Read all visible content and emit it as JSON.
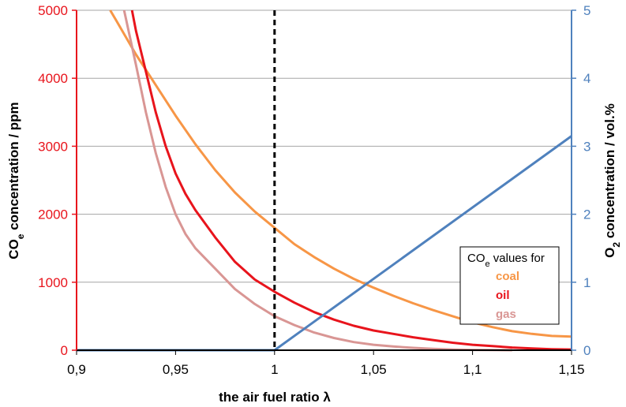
{
  "chart_data": {
    "type": "line",
    "xlabel": "the air fuel ratio λ",
    "ylabel_left": {
      "main": "CO",
      "sub": "e",
      "rest": " concentration / ppm"
    },
    "ylabel_right": {
      "main": "O",
      "sub": "2",
      "rest": " concentration / vol.%"
    },
    "xlim": [
      0.9,
      1.15
    ],
    "ylim_left": [
      0,
      5000
    ],
    "ylim_right": [
      0,
      5
    ],
    "x_ticks": [
      {
        "value": 0.9,
        "label": "0,9"
      },
      {
        "value": 0.95,
        "label": "0,95"
      },
      {
        "value": 1.0,
        "label": "1"
      },
      {
        "value": 1.05,
        "label": "1,05"
      },
      {
        "value": 1.1,
        "label": "1,1"
      },
      {
        "value": 1.15,
        "label": "1,15"
      }
    ],
    "y_left_ticks": [
      {
        "value": 0,
        "label": "0"
      },
      {
        "value": 1000,
        "label": "1000"
      },
      {
        "value": 2000,
        "label": "2000"
      },
      {
        "value": 3000,
        "label": "3000"
      },
      {
        "value": 4000,
        "label": "4000"
      },
      {
        "value": 5000,
        "label": "5000"
      }
    ],
    "y_right_ticks": [
      {
        "value": 0,
        "label": "0"
      },
      {
        "value": 1,
        "label": "1"
      },
      {
        "value": 2,
        "label": "2"
      },
      {
        "value": 3,
        "label": "3"
      },
      {
        "value": 4,
        "label": "4"
      },
      {
        "value": 5,
        "label": "5"
      }
    ],
    "grid": "horizontal",
    "reference_line": {
      "x": 1.0,
      "style": "dashed"
    },
    "legend": {
      "title_main": "CO",
      "title_sub": "e",
      "title_rest": " values for",
      "placement": "bottom-right"
    },
    "series": [
      {
        "name": "coal",
        "axis": "left",
        "color": "#f79646",
        "x": [
          0.917,
          0.92,
          0.93,
          0.94,
          0.95,
          0.96,
          0.97,
          0.98,
          0.99,
          1.0,
          1.01,
          1.02,
          1.03,
          1.04,
          1.05,
          1.06,
          1.07,
          1.08,
          1.09,
          1.1,
          1.11,
          1.12,
          1.13,
          1.14,
          1.15
        ],
        "values": [
          5000,
          4850,
          4350,
          3900,
          3450,
          3030,
          2650,
          2320,
          2040,
          1800,
          1560,
          1370,
          1200,
          1050,
          920,
          800,
          690,
          590,
          500,
          410,
          340,
          280,
          240,
          210,
          200
        ]
      },
      {
        "name": "oil",
        "axis": "left",
        "color": "#e8141c",
        "x": [
          0.928,
          0.93,
          0.935,
          0.94,
          0.945,
          0.95,
          0.955,
          0.96,
          0.97,
          0.98,
          0.99,
          1.0,
          1.01,
          1.02,
          1.03,
          1.04,
          1.05,
          1.06,
          1.07,
          1.08,
          1.09,
          1.1,
          1.11,
          1.12,
          1.13,
          1.14,
          1.15
        ],
        "values": [
          5000,
          4700,
          4100,
          3500,
          3000,
          2600,
          2300,
          2060,
          1660,
          1300,
          1040,
          860,
          700,
          560,
          450,
          360,
          290,
          240,
          190,
          150,
          110,
          80,
          60,
          40,
          25,
          15,
          10
        ]
      },
      {
        "name": "gas",
        "axis": "left",
        "color": "#d99694",
        "x": [
          0.924,
          0.93,
          0.935,
          0.94,
          0.945,
          0.95,
          0.955,
          0.96,
          0.97,
          0.98,
          0.99,
          1.0,
          1.01,
          1.02,
          1.03,
          1.04,
          1.05,
          1.06,
          1.07,
          1.08,
          1.09,
          1.1,
          1.11,
          1.12
        ],
        "values": [
          5000,
          4200,
          3500,
          2900,
          2400,
          2000,
          1710,
          1500,
          1200,
          900,
          680,
          500,
          370,
          260,
          180,
          120,
          80,
          55,
          35,
          20,
          10,
          5,
          2,
          0
        ]
      },
      {
        "name": "O2",
        "axis": "right",
        "color": "#4f81bd",
        "x": [
          0.9,
          1.0,
          1.15
        ],
        "values": [
          0,
          0,
          3.15
        ]
      }
    ]
  }
}
